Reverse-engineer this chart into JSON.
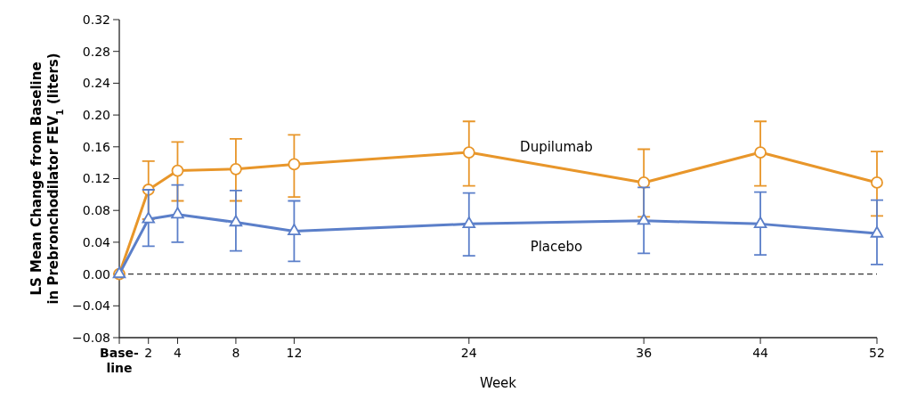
{
  "chart_data": {
    "type": "line",
    "xlabel": "Week",
    "ylabel": "LS Mean Change from Baseline\nin Prebronchodilator FEV$_{1}$ (liters)",
    "x": [
      0,
      2,
      4,
      8,
      12,
      24,
      36,
      44,
      52
    ],
    "series": [
      {
        "name": "Dupilumab",
        "color": "#e8962a",
        "marker": "circle",
        "values": [
          0,
          0.106,
          0.13,
          0.132,
          0.138,
          0.153,
          0.115,
          0.153,
          0.115
        ],
        "errors": [
          null,
          [
            0.069,
            0.142
          ],
          [
            0.092,
            0.166
          ],
          [
            0.092,
            0.17
          ],
          [
            0.097,
            0.175
          ],
          [
            0.111,
            0.192
          ],
          [
            0.072,
            0.157
          ],
          [
            0.111,
            0.192
          ],
          [
            0.073,
            0.154
          ]
        ]
      },
      {
        "name": "Placebo",
        "color": "#5b7fc9",
        "marker": "triangle",
        "values": [
          0,
          0.069,
          0.075,
          0.065,
          0.054,
          0.063,
          0.067,
          0.063,
          0.051
        ],
        "errors": [
          null,
          [
            0.035,
            0.106
          ],
          [
            0.04,
            0.112
          ],
          [
            0.029,
            0.105
          ],
          [
            0.016,
            0.092
          ],
          [
            0.023,
            0.102
          ],
          [
            0.026,
            0.109
          ],
          [
            0.024,
            0.103
          ],
          [
            0.012,
            0.093
          ]
        ]
      }
    ],
    "xlim": [
      0,
      52
    ],
    "xticks": [
      {
        "value": 0,
        "label": "Base-\nline"
      },
      2,
      4,
      8,
      12,
      24,
      36,
      44,
      52
    ],
    "ylim": [
      -0.08,
      0.32
    ],
    "yticks": [
      {
        "value": -0.08,
        "label": "−0.08"
      },
      {
        "value": -0.04,
        "label": "−0.04"
      },
      {
        "value": 0,
        "label": "0.00"
      },
      {
        "value": 0.04,
        "label": "0.04"
      },
      {
        "value": 0.08,
        "label": "0.08"
      },
      {
        "value": 0.12,
        "label": "0.12"
      },
      {
        "value": 0.16,
        "label": "0.16"
      },
      {
        "value": 0.2,
        "label": "0.20"
      },
      {
        "value": 0.24,
        "label": "0.24"
      },
      {
        "value": 0.28,
        "label": "0.28"
      },
      {
        "value": 0.32,
        "label": "0.32"
      }
    ],
    "ref_lines": [
      {
        "axis": "y",
        "value": 0,
        "line_style": "dashed",
        "color": "#333333"
      }
    ],
    "grid": false,
    "legend": false
  }
}
